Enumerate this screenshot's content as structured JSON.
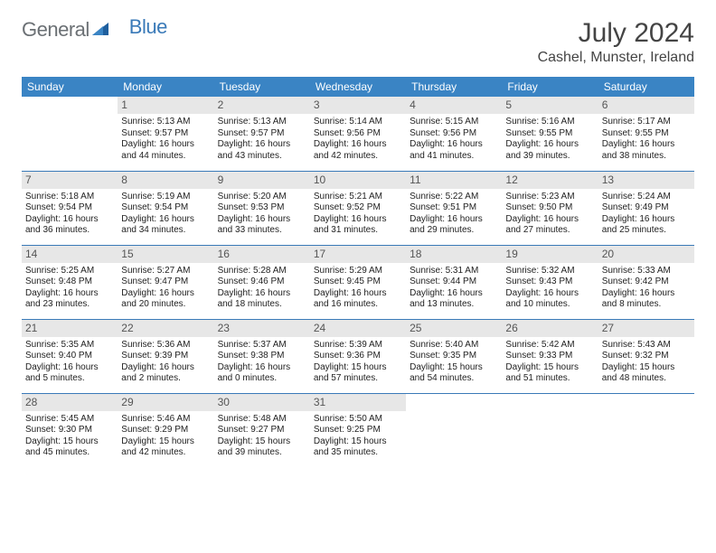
{
  "logo": {
    "part1": "General",
    "part2": "Blue"
  },
  "title": "July 2024",
  "location": "Cashel, Munster, Ireland",
  "colors": {
    "header_bg": "#3a84c4",
    "header_text": "#ffffff",
    "border": "#3a7ab8",
    "daynum_bg": "#e7e7e7",
    "logo_gray": "#6b7074",
    "logo_blue": "#3a7ab8"
  },
  "weekdays": [
    "Sunday",
    "Monday",
    "Tuesday",
    "Wednesday",
    "Thursday",
    "Friday",
    "Saturday"
  ],
  "weeks": [
    [
      {
        "empty": true
      },
      {
        "day": "1",
        "sunrise": "Sunrise: 5:13 AM",
        "sunset": "Sunset: 9:57 PM",
        "d1": "Daylight: 16 hours",
        "d2": "and 44 minutes."
      },
      {
        "day": "2",
        "sunrise": "Sunrise: 5:13 AM",
        "sunset": "Sunset: 9:57 PM",
        "d1": "Daylight: 16 hours",
        "d2": "and 43 minutes."
      },
      {
        "day": "3",
        "sunrise": "Sunrise: 5:14 AM",
        "sunset": "Sunset: 9:56 PM",
        "d1": "Daylight: 16 hours",
        "d2": "and 42 minutes."
      },
      {
        "day": "4",
        "sunrise": "Sunrise: 5:15 AM",
        "sunset": "Sunset: 9:56 PM",
        "d1": "Daylight: 16 hours",
        "d2": "and 41 minutes."
      },
      {
        "day": "5",
        "sunrise": "Sunrise: 5:16 AM",
        "sunset": "Sunset: 9:55 PM",
        "d1": "Daylight: 16 hours",
        "d2": "and 39 minutes."
      },
      {
        "day": "6",
        "sunrise": "Sunrise: 5:17 AM",
        "sunset": "Sunset: 9:55 PM",
        "d1": "Daylight: 16 hours",
        "d2": "and 38 minutes."
      }
    ],
    [
      {
        "day": "7",
        "sunrise": "Sunrise: 5:18 AM",
        "sunset": "Sunset: 9:54 PM",
        "d1": "Daylight: 16 hours",
        "d2": "and 36 minutes."
      },
      {
        "day": "8",
        "sunrise": "Sunrise: 5:19 AM",
        "sunset": "Sunset: 9:54 PM",
        "d1": "Daylight: 16 hours",
        "d2": "and 34 minutes."
      },
      {
        "day": "9",
        "sunrise": "Sunrise: 5:20 AM",
        "sunset": "Sunset: 9:53 PM",
        "d1": "Daylight: 16 hours",
        "d2": "and 33 minutes."
      },
      {
        "day": "10",
        "sunrise": "Sunrise: 5:21 AM",
        "sunset": "Sunset: 9:52 PM",
        "d1": "Daylight: 16 hours",
        "d2": "and 31 minutes."
      },
      {
        "day": "11",
        "sunrise": "Sunrise: 5:22 AM",
        "sunset": "Sunset: 9:51 PM",
        "d1": "Daylight: 16 hours",
        "d2": "and 29 minutes."
      },
      {
        "day": "12",
        "sunrise": "Sunrise: 5:23 AM",
        "sunset": "Sunset: 9:50 PM",
        "d1": "Daylight: 16 hours",
        "d2": "and 27 minutes."
      },
      {
        "day": "13",
        "sunrise": "Sunrise: 5:24 AM",
        "sunset": "Sunset: 9:49 PM",
        "d1": "Daylight: 16 hours",
        "d2": "and 25 minutes."
      }
    ],
    [
      {
        "day": "14",
        "sunrise": "Sunrise: 5:25 AM",
        "sunset": "Sunset: 9:48 PM",
        "d1": "Daylight: 16 hours",
        "d2": "and 23 minutes."
      },
      {
        "day": "15",
        "sunrise": "Sunrise: 5:27 AM",
        "sunset": "Sunset: 9:47 PM",
        "d1": "Daylight: 16 hours",
        "d2": "and 20 minutes."
      },
      {
        "day": "16",
        "sunrise": "Sunrise: 5:28 AM",
        "sunset": "Sunset: 9:46 PM",
        "d1": "Daylight: 16 hours",
        "d2": "and 18 minutes."
      },
      {
        "day": "17",
        "sunrise": "Sunrise: 5:29 AM",
        "sunset": "Sunset: 9:45 PM",
        "d1": "Daylight: 16 hours",
        "d2": "and 16 minutes."
      },
      {
        "day": "18",
        "sunrise": "Sunrise: 5:31 AM",
        "sunset": "Sunset: 9:44 PM",
        "d1": "Daylight: 16 hours",
        "d2": "and 13 minutes."
      },
      {
        "day": "19",
        "sunrise": "Sunrise: 5:32 AM",
        "sunset": "Sunset: 9:43 PM",
        "d1": "Daylight: 16 hours",
        "d2": "and 10 minutes."
      },
      {
        "day": "20",
        "sunrise": "Sunrise: 5:33 AM",
        "sunset": "Sunset: 9:42 PM",
        "d1": "Daylight: 16 hours",
        "d2": "and 8 minutes."
      }
    ],
    [
      {
        "day": "21",
        "sunrise": "Sunrise: 5:35 AM",
        "sunset": "Sunset: 9:40 PM",
        "d1": "Daylight: 16 hours",
        "d2": "and 5 minutes."
      },
      {
        "day": "22",
        "sunrise": "Sunrise: 5:36 AM",
        "sunset": "Sunset: 9:39 PM",
        "d1": "Daylight: 16 hours",
        "d2": "and 2 minutes."
      },
      {
        "day": "23",
        "sunrise": "Sunrise: 5:37 AM",
        "sunset": "Sunset: 9:38 PM",
        "d1": "Daylight: 16 hours",
        "d2": "and 0 minutes."
      },
      {
        "day": "24",
        "sunrise": "Sunrise: 5:39 AM",
        "sunset": "Sunset: 9:36 PM",
        "d1": "Daylight: 15 hours",
        "d2": "and 57 minutes."
      },
      {
        "day": "25",
        "sunrise": "Sunrise: 5:40 AM",
        "sunset": "Sunset: 9:35 PM",
        "d1": "Daylight: 15 hours",
        "d2": "and 54 minutes."
      },
      {
        "day": "26",
        "sunrise": "Sunrise: 5:42 AM",
        "sunset": "Sunset: 9:33 PM",
        "d1": "Daylight: 15 hours",
        "d2": "and 51 minutes."
      },
      {
        "day": "27",
        "sunrise": "Sunrise: 5:43 AM",
        "sunset": "Sunset: 9:32 PM",
        "d1": "Daylight: 15 hours",
        "d2": "and 48 minutes."
      }
    ],
    [
      {
        "day": "28",
        "sunrise": "Sunrise: 5:45 AM",
        "sunset": "Sunset: 9:30 PM",
        "d1": "Daylight: 15 hours",
        "d2": "and 45 minutes."
      },
      {
        "day": "29",
        "sunrise": "Sunrise: 5:46 AM",
        "sunset": "Sunset: 9:29 PM",
        "d1": "Daylight: 15 hours",
        "d2": "and 42 minutes."
      },
      {
        "day": "30",
        "sunrise": "Sunrise: 5:48 AM",
        "sunset": "Sunset: 9:27 PM",
        "d1": "Daylight: 15 hours",
        "d2": "and 39 minutes."
      },
      {
        "day": "31",
        "sunrise": "Sunrise: 5:50 AM",
        "sunset": "Sunset: 9:25 PM",
        "d1": "Daylight: 15 hours",
        "d2": "and 35 minutes."
      },
      {
        "empty": true
      },
      {
        "empty": true
      },
      {
        "empty": true
      }
    ]
  ]
}
